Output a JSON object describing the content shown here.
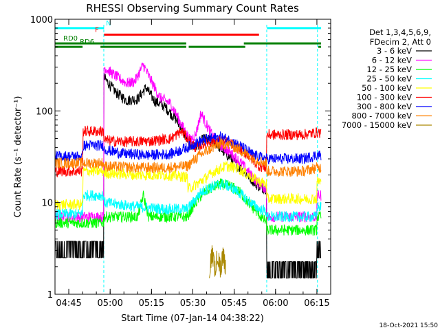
{
  "chart_data": {
    "type": "line",
    "title": "RHESSI Observing Summary Count Rates",
    "xlabel": "Start Time (07-Jan-14 04:38:22)",
    "ylabel": "Count Rate (s⁻¹ detector⁻¹)",
    "xlim_minutes": [
      280,
      380
    ],
    "ylim": [
      1,
      1000
    ],
    "y_scale": "log",
    "x_ticks": [
      {
        "m": 285,
        "label": "04:45"
      },
      {
        "m": 300,
        "label": "05:00"
      },
      {
        "m": 315,
        "label": "05:15"
      },
      {
        "m": 330,
        "label": "05:30"
      },
      {
        "m": 345,
        "label": "05:45"
      },
      {
        "m": 360,
        "label": "06:00"
      },
      {
        "m": 375,
        "label": "06:15"
      }
    ],
    "y_ticks": [
      {
        "v": 1,
        "label": "1"
      },
      {
        "v": 10,
        "label": "10"
      },
      {
        "v": 100,
        "label": "100"
      },
      {
        "v": 1000,
        "label": "1000"
      }
    ],
    "legend_header": [
      "Det 1,3,4,5,6,9,",
      "FDecim 2, Att 0"
    ],
    "series": [
      {
        "name": "3 - 6 keV",
        "color": "#000000",
        "points": [
          [
            280,
            2.5
          ],
          [
            297.7,
            2.5
          ],
          [
            297.8,
            230
          ],
          [
            302,
            160
          ],
          [
            306,
            130
          ],
          [
            310,
            135
          ],
          [
            313,
            180
          ],
          [
            316,
            130
          ],
          [
            320,
            110
          ],
          [
            324,
            80
          ],
          [
            327,
            55
          ],
          [
            329,
            42
          ],
          [
            331,
            40
          ],
          [
            334,
            50
          ],
          [
            338,
            46
          ],
          [
            341,
            36
          ],
          [
            344,
            30
          ],
          [
            347,
            24
          ],
          [
            350,
            20
          ],
          [
            352,
            17
          ],
          [
            354,
            15
          ],
          [
            356.8,
            14
          ],
          [
            356.9,
            1.5
          ],
          [
            375,
            1.5
          ],
          [
            375.1,
            2.5
          ],
          [
            376.5,
            2.5
          ]
        ]
      },
      {
        "name": "6 - 12 keV",
        "color": "#ff00ff",
        "points": [
          [
            280,
            7
          ],
          [
            297.7,
            7
          ],
          [
            297.8,
            300
          ],
          [
            302,
            240
          ],
          [
            306,
            200
          ],
          [
            309,
            210
          ],
          [
            312,
            320
          ],
          [
            314,
            240
          ],
          [
            318,
            140
          ],
          [
            322,
            120
          ],
          [
            326,
            70
          ],
          [
            329,
            48
          ],
          [
            331,
            55
          ],
          [
            333,
            95
          ],
          [
            335,
            70
          ],
          [
            338,
            48
          ],
          [
            342,
            38
          ],
          [
            345,
            32
          ],
          [
            348,
            26
          ],
          [
            351,
            20
          ],
          [
            354,
            16
          ],
          [
            356.8,
            14
          ],
          [
            356.9,
            7
          ],
          [
            375,
            7
          ],
          [
            375.1,
            12
          ],
          [
            376.5,
            12
          ]
        ]
      },
      {
        "name": "12 - 25 keV",
        "color": "#00ff00",
        "points": [
          [
            280,
            6
          ],
          [
            297.7,
            6
          ],
          [
            297.8,
            7
          ],
          [
            310,
            7
          ],
          [
            312,
            12
          ],
          [
            314,
            7
          ],
          [
            322,
            7
          ],
          [
            328,
            7
          ],
          [
            330,
            9
          ],
          [
            333,
            12
          ],
          [
            336,
            14
          ],
          [
            340,
            16
          ],
          [
            344,
            15
          ],
          [
            347,
            13
          ],
          [
            350,
            10
          ],
          [
            353,
            8
          ],
          [
            356.8,
            6
          ],
          [
            356.9,
            5
          ],
          [
            375,
            5
          ],
          [
            375.1,
            7
          ],
          [
            376.5,
            7
          ]
        ]
      },
      {
        "name": "25 - 50 keV",
        "color": "#00ffff",
        "points": [
          [
            280,
            7.5
          ],
          [
            290,
            7.5
          ],
          [
            290.2,
            12
          ],
          [
            297.7,
            12
          ],
          [
            297.8,
            10
          ],
          [
            310,
            9
          ],
          [
            320,
            8.5
          ],
          [
            328,
            8.5
          ],
          [
            330,
            10
          ],
          [
            333,
            13
          ],
          [
            337,
            15
          ],
          [
            341,
            16
          ],
          [
            345,
            14
          ],
          [
            348,
            12
          ],
          [
            351,
            10
          ],
          [
            354,
            8.5
          ],
          [
            356.8,
            8
          ],
          [
            356.9,
            7
          ],
          [
            375,
            7
          ],
          [
            375.1,
            9
          ],
          [
            376.5,
            9
          ]
        ]
      },
      {
        "name": "50 - 100 keV",
        "color": "#ffff00",
        "points": [
          [
            280,
            9.5
          ],
          [
            290,
            9.5
          ],
          [
            290.2,
            22
          ],
          [
            297.7,
            22
          ],
          [
            297.8,
            21
          ],
          [
            310,
            20
          ],
          [
            320,
            20
          ],
          [
            328,
            19
          ],
          [
            328.2,
            14
          ],
          [
            330,
            15
          ],
          [
            334,
            18
          ],
          [
            338,
            22
          ],
          [
            342,
            25
          ],
          [
            346,
            24
          ],
          [
            350,
            20
          ],
          [
            354,
            17
          ],
          [
            356.8,
            16
          ],
          [
            356.9,
            11
          ],
          [
            375,
            11
          ],
          [
            375.1,
            17
          ],
          [
            376.5,
            17
          ]
        ]
      },
      {
        "name": "100 - 300 keV",
        "color": "#ff0000",
        "points": [
          [
            280,
            22
          ],
          [
            290,
            22
          ],
          [
            290.2,
            60
          ],
          [
            297.7,
            60
          ],
          [
            297.8,
            48
          ],
          [
            305,
            46
          ],
          [
            315,
            47
          ],
          [
            322,
            50
          ],
          [
            326,
            60
          ],
          [
            328,
            50
          ],
          [
            331,
            40
          ],
          [
            335,
            45
          ],
          [
            340,
            48
          ],
          [
            345,
            42
          ],
          [
            350,
            33
          ],
          [
            354,
            25
          ],
          [
            356.8,
            24
          ],
          [
            356.9,
            55
          ],
          [
            370,
            55
          ],
          [
            375,
            58
          ],
          [
            376.5,
            58
          ]
        ]
      },
      {
        "name": "300 - 800 keV",
        "color": "#0000ff",
        "points": [
          [
            280,
            32
          ],
          [
            290,
            32
          ],
          [
            290.2,
            42
          ],
          [
            297.7,
            42
          ],
          [
            297.8,
            38
          ],
          [
            305,
            34
          ],
          [
            315,
            33
          ],
          [
            322,
            34
          ],
          [
            328,
            40
          ],
          [
            332,
            46
          ],
          [
            336,
            50
          ],
          [
            340,
            52
          ],
          [
            344,
            47
          ],
          [
            348,
            40
          ],
          [
            352,
            33
          ],
          [
            356.8,
            30
          ],
          [
            356.9,
            30
          ],
          [
            370,
            30
          ],
          [
            375,
            33
          ],
          [
            376.5,
            33
          ]
        ]
      },
      {
        "name": "800 - 7000 keV",
        "color": "#ff8000",
        "points": [
          [
            280,
            27
          ],
          [
            290,
            27
          ],
          [
            290.2,
            27
          ],
          [
            297.7,
            27
          ],
          [
            297.8,
            25
          ],
          [
            310,
            24
          ],
          [
            320,
            24
          ],
          [
            328,
            25
          ],
          [
            332,
            32
          ],
          [
            336,
            38
          ],
          [
            340,
            44
          ],
          [
            344,
            42
          ],
          [
            348,
            36
          ],
          [
            352,
            30
          ],
          [
            356.8,
            27
          ],
          [
            356.9,
            22
          ],
          [
            370,
            22
          ],
          [
            375,
            24
          ],
          [
            376.5,
            24
          ]
        ]
      },
      {
        "name": "7000 - 15000 keV",
        "color": "#aa8800",
        "points": [
          [
            336,
            1.5
          ],
          [
            337,
            2.3
          ],
          [
            338,
            1.5
          ],
          [
            339,
            2.3
          ],
          [
            340,
            1.5
          ],
          [
            341,
            2.2
          ],
          [
            342,
            1.5
          ]
        ]
      }
    ],
    "status_bars": [
      {
        "name": "N",
        "color": "#00ffff",
        "level": 800,
        "segments": [
          [
            280,
            297.8
          ],
          [
            356.9,
            376.5
          ]
        ]
      },
      {
        "name": "F",
        "color": "#ff0000",
        "level": 680,
        "segments": [
          [
            297.8,
            354
          ]
        ]
      },
      {
        "name": "RD0",
        "color": "#008000",
        "level": 545,
        "segments": [
          [
            280,
            327.6
          ],
          [
            348.5,
            376.5
          ]
        ]
      },
      {
        "name": "RD6",
        "color": "#008000",
        "level": 500,
        "segments": [
          [
            280,
            290
          ],
          [
            296.5,
            327.6
          ],
          [
            328.5,
            349
          ],
          [
            375.5,
            376.5
          ]
        ]
      }
    ],
    "vlines_minutes": [
      297.7,
      356.8,
      375.2
    ],
    "timestamp": "18-Oct-2021 15:50"
  }
}
